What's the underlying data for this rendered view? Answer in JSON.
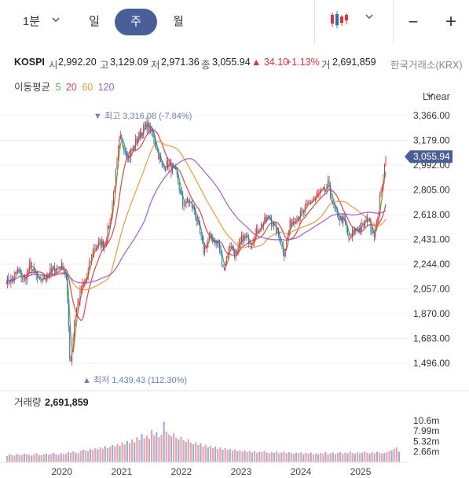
{
  "toolbar": {
    "interval": "1분",
    "tabs": [
      {
        "label": "일",
        "active": false
      },
      {
        "label": "주",
        "active": true
      },
      {
        "label": "월",
        "active": false
      }
    ],
    "chart_type_icon": "candlestick-icon",
    "zoom_out": "−",
    "zoom_in": "+"
  },
  "info": {
    "symbol": "KOSPI",
    "open_label": "시",
    "open": "2,992.20",
    "high_label": "고",
    "high": "3,129.09",
    "low_label": "저",
    "low": "2,971.36",
    "close_label": "종",
    "close": "3,055.94",
    "change": "▲ 34.10",
    "change_pct": "+1.13%",
    "volume_label": "거",
    "volume": "2,691,859",
    "exchange": "한국거래소(KRX)"
  },
  "moving_avg": {
    "label": "이동평균",
    "periods": [
      {
        "value": "5",
        "color": "#58b23c"
      },
      {
        "value": "20",
        "color": "#e0454a"
      },
      {
        "value": "60",
        "color": "#f29a38"
      },
      {
        "value": "120",
        "color": "#9b5fd6"
      }
    ]
  },
  "scale_mode": "Linear",
  "colors": {
    "up": "#e0313e",
    "down": "#2c6fb5",
    "accent": "#4a5f97",
    "price_tag": "#4a5f97"
  },
  "chart_data": {
    "type": "candlestick",
    "x_ticks": [
      "2020",
      "2021",
      "2022",
      "2023",
      "2024",
      "2025"
    ],
    "y_ticks": [
      "3,366.00",
      "3,179.00",
      "2,992.00",
      "2,805.00",
      "2,618.00",
      "2,431.00",
      "2,244.00",
      "2,057.00",
      "1,870.00",
      "1,683.00",
      "1,496.00"
    ],
    "y_tick_values": [
      3366,
      3179,
      2992,
      2805,
      2618,
      2431,
      2244,
      2057,
      1870,
      1683,
      1496
    ],
    "ylim": [
      1420,
      3420
    ],
    "xlim": [
      2019.15,
      2025.75
    ],
    "current_price": "3,055.94",
    "current_value": 3055.94,
    "annotations": {
      "high": {
        "text": "▼ 최고 3,316.08 (-7.84%)",
        "x": 2021.5,
        "y": 3316.08
      },
      "low": {
        "text": "▲ 최저 1,439.43 (112.30%)",
        "x": 2020.22,
        "y": 1439.43
      }
    },
    "price_path": [
      [
        2019.15,
        2130
      ],
      [
        2019.25,
        2120
      ],
      [
        2019.35,
        2200
      ],
      [
        2019.45,
        2120
      ],
      [
        2019.55,
        2240
      ],
      [
        2019.7,
        2110
      ],
      [
        2019.85,
        2170
      ],
      [
        2020.0,
        2220
      ],
      [
        2020.1,
        2230
      ],
      [
        2020.15,
        2160
      ],
      [
        2020.2,
        1700
      ],
      [
        2020.22,
        1460
      ],
      [
        2020.3,
        1850
      ],
      [
        2020.4,
        2050
      ],
      [
        2020.5,
        2150
      ],
      [
        2020.6,
        2350
      ],
      [
        2020.7,
        2400
      ],
      [
        2020.8,
        2400
      ],
      [
        2020.9,
        2600
      ],
      [
        2021.0,
        3000
      ],
      [
        2021.05,
        3200
      ],
      [
        2021.2,
        3050
      ],
      [
        2021.35,
        3200
      ],
      [
        2021.5,
        3300
      ],
      [
        2021.6,
        3230
      ],
      [
        2021.75,
        2980
      ],
      [
        2021.85,
        3000
      ],
      [
        2022.0,
        2920
      ],
      [
        2022.1,
        2700
      ],
      [
        2022.2,
        2720
      ],
      [
        2022.3,
        2650
      ],
      [
        2022.45,
        2350
      ],
      [
        2022.55,
        2450
      ],
      [
        2022.7,
        2400
      ],
      [
        2022.78,
        2200
      ],
      [
        2022.9,
        2400
      ],
      [
        2023.0,
        2300
      ],
      [
        2023.1,
        2450
      ],
      [
        2023.25,
        2420
      ],
      [
        2023.4,
        2530
      ],
      [
        2023.55,
        2600
      ],
      [
        2023.7,
        2470
      ],
      [
        2023.8,
        2330
      ],
      [
        2023.9,
        2550
      ],
      [
        2024.0,
        2600
      ],
      [
        2024.1,
        2620
      ],
      [
        2024.25,
        2720
      ],
      [
        2024.4,
        2780
      ],
      [
        2024.5,
        2800
      ],
      [
        2024.55,
        2860
      ],
      [
        2024.6,
        2700
      ],
      [
        2024.7,
        2600
      ],
      [
        2024.8,
        2570
      ],
      [
        2024.9,
        2410
      ],
      [
        2024.95,
        2500
      ],
      [
        2025.1,
        2520
      ],
      [
        2025.2,
        2600
      ],
      [
        2025.3,
        2470
      ],
      [
        2025.35,
        2550
      ],
      [
        2025.42,
        2780
      ],
      [
        2025.47,
        2950
      ],
      [
        2025.5,
        3055.94
      ]
    ],
    "series": [
      {
        "name": "5",
        "color": "#58b23c",
        "shift": 0.03,
        "window": 1
      },
      {
        "name": "20",
        "color": "#e0454a",
        "shift": 0.2,
        "window": 4
      },
      {
        "name": "60",
        "color": "#f29a38",
        "shift": 0.55,
        "window": 12
      },
      {
        "name": "120",
        "color": "#9b5fd6",
        "shift": 1.0,
        "window": 22
      }
    ],
    "volume": {
      "label": "거래량",
      "value": "2,691,859",
      "y_ticks": [
        "10.6m",
        "7.99m",
        "5.32m",
        "2.66m"
      ],
      "y_tick_values": [
        10.6,
        7.99,
        5.32,
        2.66
      ],
      "ylim": [
        0,
        13.2
      ],
      "bars": [
        1.6,
        2.0,
        1.8,
        1.7,
        2.1,
        1.9,
        1.8,
        2.2,
        2.0,
        1.9,
        1.7,
        2.1,
        2.3,
        1.9,
        1.8,
        2.0,
        2.2,
        1.9,
        2.1,
        2.4,
        2.0,
        1.9,
        2.3,
        2.1,
        2.2,
        2.6,
        2.4,
        2.8,
        2.5,
        2.3,
        2.9,
        3.2,
        3.0,
        2.8,
        3.4,
        3.1,
        3.6,
        3.3,
        3.8,
        3.5,
        4.1,
        3.6,
        3.9,
        4.4,
        4.0,
        4.6,
        4.2,
        5.0,
        4.5,
        5.4,
        4.8,
        5.8,
        5.1,
        6.4,
        5.7,
        7.2,
        6.1,
        6.8,
        6.0,
        8.2,
        6.9,
        7.6,
        6.4,
        7.0,
        10.3,
        7.8,
        7.1,
        6.6,
        7.4,
        6.2,
        5.8,
        6.5,
        5.6,
        5.2,
        5.9,
        5.0,
        4.6,
        5.1,
        4.4,
        4.8,
        4.0,
        4.5,
        3.8,
        4.2,
        3.6,
        4.0,
        3.4,
        3.8,
        3.2,
        3.6,
        3.1,
        3.4,
        3.0,
        3.3,
        2.8,
        3.1,
        2.7,
        3.0,
        2.6,
        2.9,
        2.5,
        2.8,
        2.4,
        2.7,
        2.6,
        2.9,
        2.5,
        2.3,
        2.6,
        2.4,
        2.8,
        2.2,
        2.5,
        2.7,
        2.3,
        2.6,
        2.4,
        2.2,
        2.5,
        2.3,
        2.6,
        2.1,
        2.4,
        2.2,
        2.5,
        2.0,
        2.3,
        2.1,
        2.4,
        2.2,
        2.6,
        2.0,
        2.3,
        2.5,
        2.1,
        2.4,
        2.6,
        2.2,
        2.5,
        2.3,
        2.7,
        2.4,
        2.2,
        2.6,
        2.3,
        2.5,
        2.8,
        2.4,
        2.2,
        2.6,
        2.3,
        2.7,
        2.5,
        2.2,
        2.4,
        2.6,
        2.8,
        3.0,
        3.4,
        3.8,
        2.7
      ]
    }
  }
}
